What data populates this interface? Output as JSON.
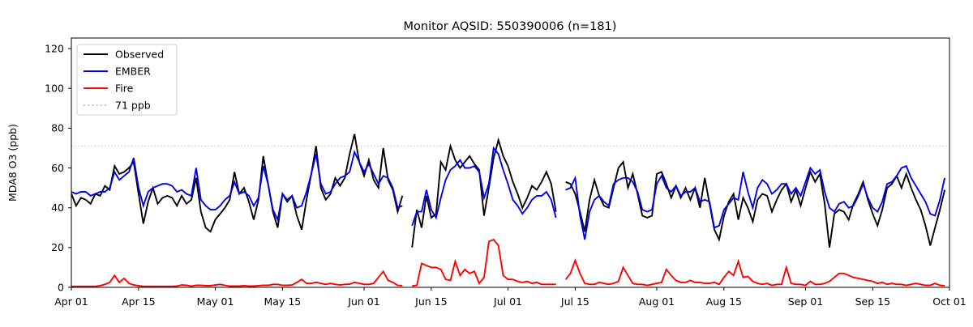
{
  "title": "Monitor AQSID: 550390006 (n=181)",
  "axes": {
    "ylabel": "MDA8 O3 (ppb)",
    "y_tick_labels": [
      "0",
      "20",
      "40",
      "60",
      "80",
      "100",
      "120"
    ],
    "x_tick_labels": [
      "Apr 01",
      "Apr 15",
      "May 01",
      "May 15",
      "Jun 01",
      "Jun 15",
      "Jul 01",
      "Jul 15",
      "Aug 01",
      "Aug 15",
      "Sep 01",
      "Sep 15",
      "Oct 01"
    ]
  },
  "legend": {
    "entries": [
      {
        "label": "Observed",
        "color": "#000000",
        "dash": "none"
      },
      {
        "label": "EMBER",
        "color": "#0000ee",
        "dash": "none"
      },
      {
        "label": "Fire",
        "color": "#ff0000",
        "dash": "none"
      },
      {
        "label": "71 ppb",
        "color": "#c9c9c9",
        "dash": "dotted"
      }
    ]
  },
  "chart_data": {
    "type": "line",
    "title": "Monitor AQSID: 550390006 (n=181)",
    "xlabel": "",
    "ylabel": "MDA8 O3 (ppb)",
    "x_start_date": "Apr 01",
    "x_end_date": "Oct 01",
    "n_days": 183,
    "x_tick_days": [
      0,
      14,
      30,
      44,
      61,
      75,
      91,
      105,
      122,
      136,
      153,
      167,
      183
    ],
    "x_tick_labels": [
      "Apr 01",
      "Apr 15",
      "May 01",
      "May 15",
      "Jun 01",
      "Jun 15",
      "Jul 01",
      "Jul 15",
      "Aug 01",
      "Aug 15",
      "Sep 01",
      "Sep 15",
      "Oct 01"
    ],
    "y_ticks": [
      0,
      20,
      40,
      60,
      80,
      100,
      120
    ],
    "ylim": [
      0,
      125.3
    ],
    "grid": false,
    "legend_position": "upper-left",
    "threshold": {
      "label": "71 ppb",
      "value": 71,
      "color": "#c9c9c9",
      "style": "dotted"
    },
    "missing_days_note": "null = missing day (gaps near Jun 10 and Jul 12)",
    "series": [
      {
        "name": "Observed",
        "color": "#000000",
        "values": [
          47,
          41,
          45,
          44,
          42,
          47,
          46,
          51,
          49,
          61,
          57,
          58,
          60,
          63,
          47,
          32,
          43,
          50,
          42,
          45,
          46,
          45,
          41,
          46,
          42,
          44,
          55,
          38,
          30,
          28,
          34,
          37,
          40,
          44,
          58,
          47,
          50,
          43,
          34,
          44,
          66,
          52,
          38,
          30,
          47,
          43,
          46,
          36,
          29,
          44,
          57,
          71,
          50,
          44,
          47,
          55,
          51,
          55,
          67,
          77,
          63,
          56,
          64,
          54,
          50,
          70,
          54,
          49,
          38,
          46,
          null,
          20,
          39,
          30,
          46,
          35,
          37,
          63,
          59,
          71,
          64,
          60,
          63,
          66,
          62,
          59,
          36,
          50,
          65,
          74,
          66,
          61,
          53,
          47,
          40,
          45,
          51,
          49,
          53,
          58,
          52,
          38,
          null,
          53,
          52,
          47,
          38,
          28,
          44,
          54,
          46,
          41,
          40,
          50,
          60,
          63,
          50,
          57,
          47,
          36,
          35,
          36,
          57,
          58,
          52,
          45,
          51,
          45,
          50,
          44,
          50,
          40,
          55,
          42,
          29,
          24,
          36,
          43,
          47,
          34,
          45,
          40,
          33,
          44,
          47,
          46,
          38,
          44,
          49,
          52,
          43,
          49,
          41,
          50,
          58,
          53,
          57,
          42,
          20,
          37,
          39,
          38,
          34,
          42,
          47,
          53,
          44,
          37,
          31,
          39,
          50,
          52,
          56,
          50,
          57,
          50,
          44,
          39,
          31,
          21,
          30,
          39,
          49
        ]
      },
      {
        "name": "EMBER",
        "color": "#0000ee",
        "values": [
          48,
          47,
          48,
          48,
          46,
          47,
          48,
          48,
          50,
          58,
          54,
          56,
          58,
          65,
          50,
          41,
          48,
          50,
          51,
          52,
          52,
          51,
          48,
          49,
          47,
          46,
          60,
          44,
          41,
          39,
          39,
          41,
          44,
          46,
          53,
          47,
          48,
          46,
          41,
          45,
          61,
          52,
          39,
          34,
          47,
          44,
          46,
          40,
          41,
          48,
          57,
          67,
          52,
          47,
          48,
          52,
          55,
          56,
          58,
          68,
          63,
          58,
          62,
          57,
          52,
          56,
          55,
          50,
          40,
          41,
          null,
          31,
          38,
          38,
          49,
          39,
          35,
          45,
          54,
          59,
          61,
          64,
          60,
          60,
          61,
          58,
          45,
          52,
          70,
          67,
          59,
          52,
          44,
          41,
          37,
          40,
          44,
          46,
          46,
          48,
          44,
          35,
          null,
          49,
          50,
          55,
          36,
          24,
          38,
          44,
          46,
          43,
          41,
          52,
          54,
          55,
          55,
          53,
          48,
          39,
          38,
          39,
          52,
          56,
          50,
          48,
          51,
          46,
          48,
          48,
          50,
          43,
          44,
          43,
          30,
          31,
          39,
          42,
          45,
          44,
          58,
          48,
          40,
          50,
          54,
          52,
          47,
          49,
          52,
          52,
          47,
          50,
          46,
          53,
          60,
          57,
          59,
          48,
          40,
          38,
          42,
          43,
          40,
          41,
          46,
          52,
          45,
          40,
          38,
          43,
          52,
          53,
          56,
          60,
          61,
          55,
          51,
          47,
          43,
          37,
          36,
          44,
          55
        ]
      },
      {
        "name": "Fire",
        "color": "#ff0000",
        "values": [
          0.5,
          0.5,
          0.5,
          0.5,
          0.5,
          0.5,
          0.8,
          1.5,
          2.5,
          6,
          2.5,
          4.5,
          2,
          1.2,
          0.8,
          0.5,
          0.5,
          0.5,
          0.5,
          0.5,
          0.5,
          0.5,
          0.6,
          1.2,
          1.0,
          0.6,
          1.0,
          1.0,
          0.8,
          0.8,
          1.2,
          1.5,
          1.0,
          0.6,
          0.6,
          0.6,
          0.8,
          0.6,
          0.6,
          0.8,
          1.0,
          1.0,
          1.5,
          1.5,
          1.0,
          1.0,
          1.2,
          2.5,
          4.0,
          2.0,
          2.0,
          2.5,
          2.0,
          1.5,
          2.0,
          1.5,
          1.2,
          1.5,
          1.6,
          2.5,
          2.0,
          1.5,
          1.5,
          2.0,
          5.0,
          8.0,
          3.5,
          2.5,
          1.0,
          0.8,
          null,
          0.7,
          1.0,
          12,
          11,
          10,
          10,
          9,
          4,
          3.5,
          13,
          6,
          9,
          7,
          8,
          2,
          5,
          23,
          24,
          21,
          6,
          4,
          4,
          3,
          2.5,
          3,
          2,
          2.5,
          1.5,
          1.5,
          1.5,
          1.5,
          null,
          4,
          7,
          13.5,
          7,
          2,
          1.5,
          1.5,
          2.5,
          2,
          1.5,
          2,
          3,
          10,
          6,
          2,
          1.5,
          1.5,
          1,
          1.5,
          2,
          2.5,
          9,
          6,
          3.5,
          2.5,
          2.5,
          3.5,
          2.5,
          2.5,
          2,
          2,
          2.5,
          1.5,
          5,
          8,
          6,
          13,
          5,
          5.5,
          3,
          2,
          1.5,
          2,
          1,
          1.5,
          1.5,
          10,
          2,
          1.5,
          1.5,
          1,
          3,
          1.5,
          1.5,
          2,
          3,
          5,
          7,
          7,
          6,
          5,
          4.5,
          4,
          3.5,
          3,
          2,
          2.5,
          1.5,
          2,
          1.5,
          1.5,
          1,
          1.5,
          2,
          1.5,
          1,
          1,
          2,
          1,
          0.8
        ]
      }
    ]
  }
}
